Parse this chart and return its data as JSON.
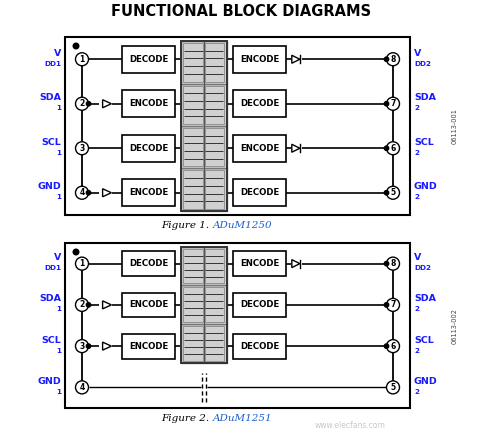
{
  "title": "FUNCTIONAL BLOCK DIAGRAMS",
  "title_color": "#000000",
  "title_fontsize": 10.5,
  "bg_color": "#ffffff",
  "label_color": "#1a1aff",
  "fig1_caption_italic": "Figure 1. ",
  "fig1_caption_blue": "ADuM1250",
  "fig2_caption_italic": "Figure 2. ",
  "fig2_caption_blue": "ADuM1251",
  "series1": "06113-001",
  "series2": "06113-002",
  "watermark": "www.elecfans.com",
  "diagram1": {
    "rows": [
      {
        "pin_l": 1,
        "label_l": "V",
        "sub_l": "DD1",
        "left_block": "DECODE",
        "has_buf_l": false,
        "transformer": true,
        "right_block": "ENCODE",
        "has_buf_r": true,
        "pin_r": 8,
        "label_r": "V",
        "sub_r": "DD2"
      },
      {
        "pin_l": 2,
        "label_l": "SDA",
        "sub_l": "1",
        "left_block": "ENCODE",
        "has_buf_l": true,
        "transformer": true,
        "right_block": "DECODE",
        "has_buf_r": false,
        "pin_r": 7,
        "label_r": "SDA",
        "sub_r": "2"
      },
      {
        "pin_l": 3,
        "label_l": "SCL",
        "sub_l": "1",
        "left_block": "DECODE",
        "has_buf_l": false,
        "transformer": true,
        "right_block": "ENCODE",
        "has_buf_r": true,
        "pin_r": 6,
        "label_r": "SCL",
        "sub_r": "2"
      },
      {
        "pin_l": 4,
        "label_l": "GND",
        "sub_l": "1",
        "left_block": "ENCODE",
        "has_buf_l": true,
        "transformer": true,
        "right_block": "DECODE",
        "has_buf_r": false,
        "pin_r": 5,
        "label_r": "GND",
        "sub_r": "2"
      }
    ]
  },
  "diagram2": {
    "rows": [
      {
        "pin_l": 1,
        "label_l": "V",
        "sub_l": "DD1",
        "left_block": "DECODE",
        "has_buf_l": false,
        "transformer": true,
        "right_block": "ENCODE",
        "has_buf_r": true,
        "pin_r": 8,
        "label_r": "V",
        "sub_r": "DD2"
      },
      {
        "pin_l": 2,
        "label_l": "SDA",
        "sub_l": "1",
        "left_block": "ENCODE",
        "has_buf_l": true,
        "transformer": true,
        "right_block": "DECODE",
        "has_buf_r": false,
        "pin_r": 7,
        "label_r": "SDA",
        "sub_r": "2"
      },
      {
        "pin_l": 3,
        "label_l": "SCL",
        "sub_l": "1",
        "left_block": "ENCODE",
        "has_buf_l": true,
        "transformer": true,
        "right_block": "DECODE",
        "has_buf_r": false,
        "pin_r": 6,
        "label_r": "SCL",
        "sub_r": "2"
      },
      {
        "pin_l": 4,
        "label_l": "GND",
        "sub_l": "1",
        "left_block": null,
        "has_buf_l": false,
        "transformer": false,
        "right_block": null,
        "has_buf_r": false,
        "pin_r": 5,
        "label_r": "GND",
        "sub_r": "2"
      }
    ]
  }
}
